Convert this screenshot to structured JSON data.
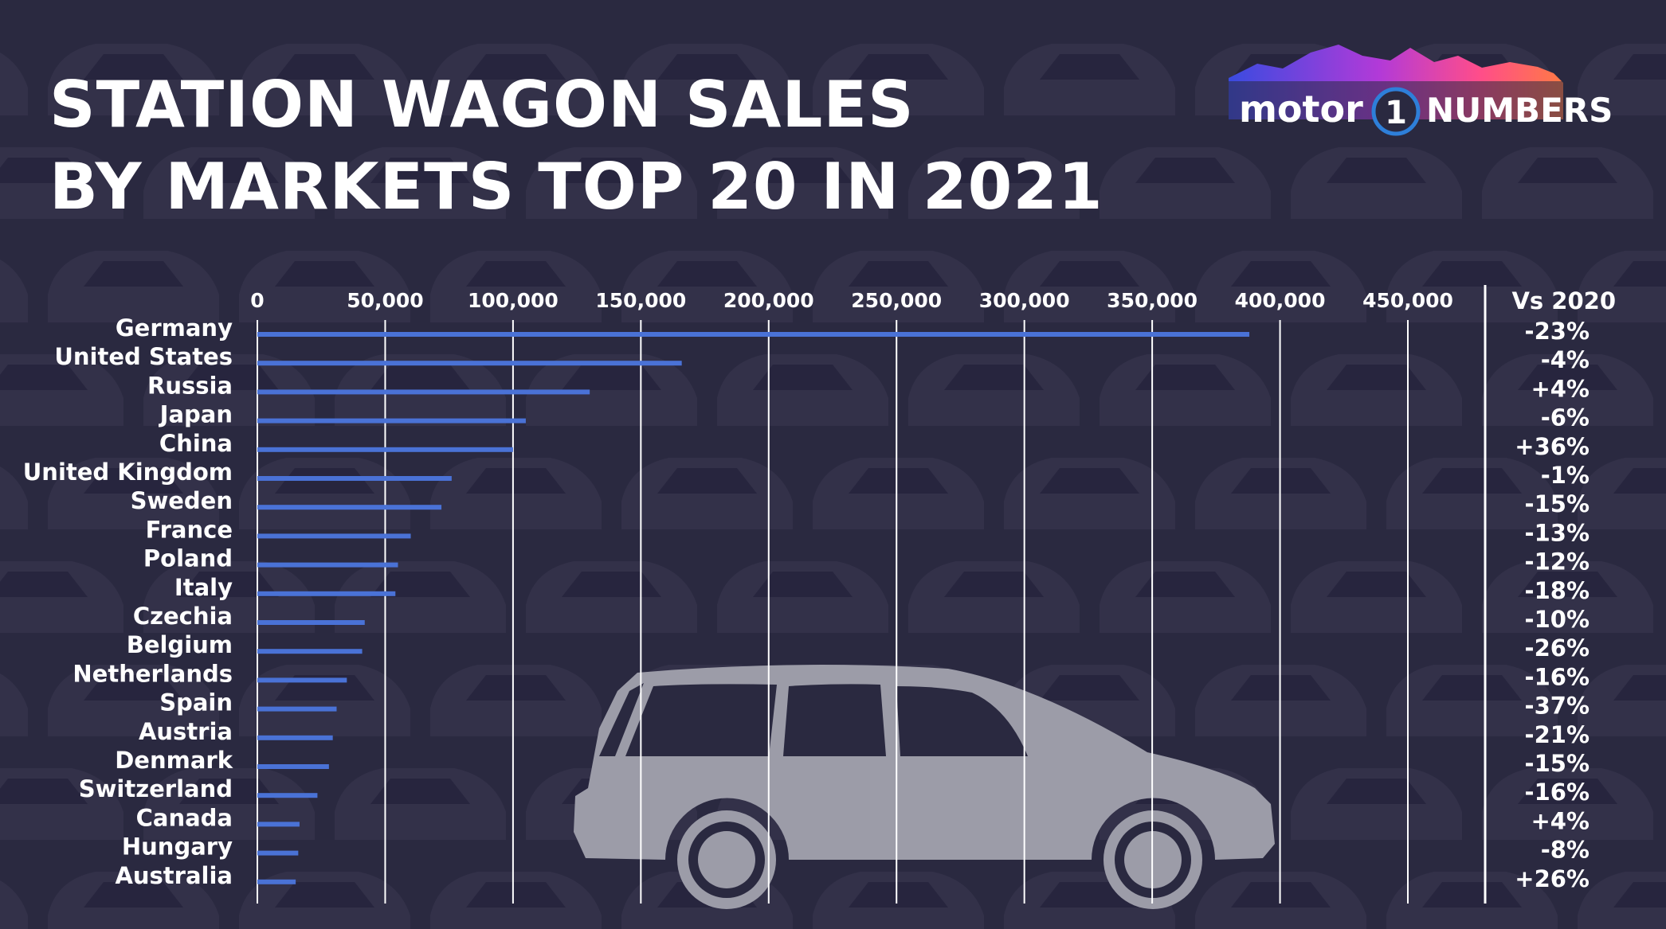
{
  "header": {
    "title_line1": "STATION WAGON SALES",
    "title_line2": "BY MARKETS TOP 20 IN 2021"
  },
  "logo": {
    "brand": "motor",
    "brand_number": "1",
    "suffix": "NUMBERS"
  },
  "colors": {
    "background": "#2a2940",
    "bar": "#4a72d6",
    "car_silhouette": "#9c9ca8",
    "gridline": "#ffffff",
    "text": "#ffffff"
  },
  "icons": {
    "car": "station-wagon-silhouette-icon",
    "logo": "motor1-numbers-logo"
  },
  "chart_data": {
    "type": "bar",
    "orientation": "horizontal",
    "title": "STATION WAGON SALES BY MARKETS TOP 20 IN 2021",
    "x_ticks": [
      "0",
      "50,000",
      "100,000",
      "150,000",
      "200,000",
      "250,000",
      "300,000",
      "350,000",
      "400,000",
      "450,000"
    ],
    "x_tick_values": [
      0,
      50000,
      100000,
      150000,
      200000,
      250000,
      300000,
      350000,
      400000,
      450000
    ],
    "xlim": [
      0,
      450000
    ],
    "grid": true,
    "change_header": "Vs 2020",
    "categories": [
      "Germany",
      "United States",
      "Russia",
      "Japan",
      "China",
      "United Kingdom",
      "Sweden",
      "France",
      "Poland",
      "Italy",
      "Czechia",
      "Belgium",
      "Netherlands",
      "Spain",
      "Austria",
      "Denmark",
      "Switzerland",
      "Canada",
      "Hungary",
      "Australia"
    ],
    "values": [
      388000,
      166000,
      130000,
      105000,
      100000,
      76000,
      72000,
      60000,
      55000,
      54000,
      42000,
      41000,
      35000,
      31000,
      29500,
      28000,
      23500,
      16500,
      16000,
      15000
    ],
    "changes": [
      "-23%",
      "-4%",
      "+4%",
      "-6%",
      "+36%",
      "-1%",
      "-15%",
      "-13%",
      "-12%",
      "-18%",
      "-10%",
      "-26%",
      "-16%",
      "-37%",
      "-21%",
      "-15%",
      "-16%",
      "+4%",
      "-8%",
      "+26%"
    ]
  }
}
